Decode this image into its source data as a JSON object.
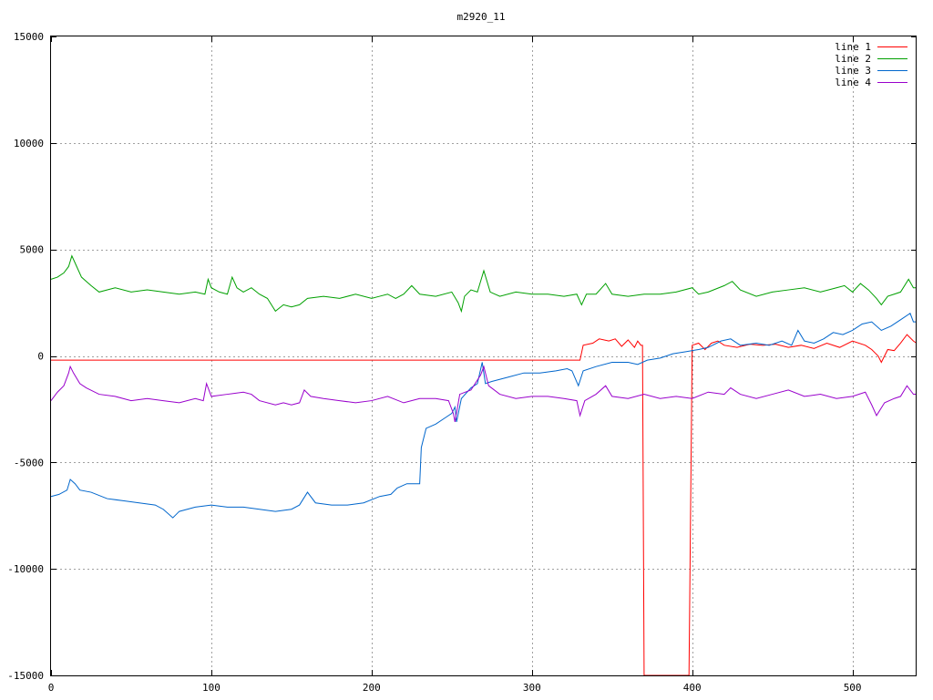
{
  "chart_data": {
    "type": "line",
    "title": "m2920_11",
    "xlabel": "",
    "ylabel": "",
    "xlim": [
      0,
      540
    ],
    "ylim": [
      -15000,
      15000
    ],
    "x_ticks": [
      0,
      100,
      200,
      300,
      400,
      500
    ],
    "y_ticks": [
      -15000,
      -10000,
      -5000,
      0,
      5000,
      10000,
      15000
    ],
    "grid": true,
    "legend_position": "top-right",
    "series": [
      {
        "name": "line 1",
        "color": "#ff0000",
        "points": [
          [
            0,
            -200
          ],
          [
            100,
            -200
          ],
          [
            200,
            -200
          ],
          [
            300,
            -200
          ],
          [
            330,
            -200
          ],
          [
            332,
            500
          ],
          [
            338,
            600
          ],
          [
            342,
            800
          ],
          [
            348,
            700
          ],
          [
            352,
            800
          ],
          [
            356,
            450
          ],
          [
            360,
            750
          ],
          [
            364,
            400
          ],
          [
            366,
            700
          ],
          [
            368,
            500
          ],
          [
            369,
            500
          ],
          [
            370,
            -15000
          ],
          [
            398,
            -15000
          ],
          [
            400,
            500
          ],
          [
            404,
            600
          ],
          [
            408,
            300
          ],
          [
            412,
            600
          ],
          [
            416,
            700
          ],
          [
            420,
            500
          ],
          [
            428,
            400
          ],
          [
            436,
            550
          ],
          [
            444,
            500
          ],
          [
            452,
            550
          ],
          [
            460,
            400
          ],
          [
            468,
            500
          ],
          [
            476,
            350
          ],
          [
            484,
            600
          ],
          [
            492,
            400
          ],
          [
            500,
            700
          ],
          [
            508,
            500
          ],
          [
            512,
            300
          ],
          [
            516,
            0
          ],
          [
            518,
            -300
          ],
          [
            522,
            300
          ],
          [
            526,
            250
          ],
          [
            530,
            600
          ],
          [
            534,
            1000
          ],
          [
            538,
            700
          ],
          [
            540,
            600
          ]
        ]
      },
      {
        "name": "line 2",
        "color": "#00a000",
        "points": [
          [
            0,
            3600
          ],
          [
            4,
            3700
          ],
          [
            8,
            3900
          ],
          [
            11,
            4200
          ],
          [
            13,
            4700
          ],
          [
            16,
            4200
          ],
          [
            19,
            3700
          ],
          [
            22,
            3500
          ],
          [
            25,
            3300
          ],
          [
            30,
            3000
          ],
          [
            40,
            3200
          ],
          [
            50,
            3000
          ],
          [
            60,
            3100
          ],
          [
            70,
            3000
          ],
          [
            80,
            2900
          ],
          [
            90,
            3000
          ],
          [
            96,
            2900
          ],
          [
            98,
            3600
          ],
          [
            100,
            3200
          ],
          [
            105,
            3000
          ],
          [
            110,
            2900
          ],
          [
            113,
            3700
          ],
          [
            116,
            3200
          ],
          [
            120,
            3000
          ],
          [
            125,
            3200
          ],
          [
            130,
            2900
          ],
          [
            135,
            2700
          ],
          [
            140,
            2100
          ],
          [
            145,
            2400
          ],
          [
            150,
            2300
          ],
          [
            155,
            2400
          ],
          [
            160,
            2700
          ],
          [
            170,
            2800
          ],
          [
            180,
            2700
          ],
          [
            190,
            2900
          ],
          [
            200,
            2700
          ],
          [
            205,
            2800
          ],
          [
            210,
            2900
          ],
          [
            215,
            2700
          ],
          [
            220,
            2900
          ],
          [
            225,
            3300
          ],
          [
            230,
            2900
          ],
          [
            240,
            2800
          ],
          [
            250,
            3000
          ],
          [
            254,
            2500
          ],
          [
            256,
            2100
          ],
          [
            258,
            2800
          ],
          [
            262,
            3100
          ],
          [
            266,
            3000
          ],
          [
            270,
            4000
          ],
          [
            274,
            3000
          ],
          [
            280,
            2800
          ],
          [
            290,
            3000
          ],
          [
            300,
            2900
          ],
          [
            310,
            2900
          ],
          [
            320,
            2800
          ],
          [
            328,
            2900
          ],
          [
            331,
            2400
          ],
          [
            334,
            2900
          ],
          [
            340,
            2900
          ],
          [
            346,
            3400
          ],
          [
            350,
            2900
          ],
          [
            360,
            2800
          ],
          [
            370,
            2900
          ],
          [
            380,
            2900
          ],
          [
            390,
            3000
          ],
          [
            400,
            3200
          ],
          [
            404,
            2900
          ],
          [
            410,
            3000
          ],
          [
            420,
            3300
          ],
          [
            425,
            3500
          ],
          [
            430,
            3100
          ],
          [
            440,
            2800
          ],
          [
            450,
            3000
          ],
          [
            460,
            3100
          ],
          [
            470,
            3200
          ],
          [
            480,
            3000
          ],
          [
            490,
            3200
          ],
          [
            495,
            3300
          ],
          [
            500,
            3000
          ],
          [
            505,
            3400
          ],
          [
            510,
            3100
          ],
          [
            515,
            2700
          ],
          [
            518,
            2400
          ],
          [
            522,
            2800
          ],
          [
            526,
            2900
          ],
          [
            530,
            3000
          ],
          [
            535,
            3600
          ],
          [
            538,
            3200
          ],
          [
            540,
            3200
          ]
        ]
      },
      {
        "name": "line 3",
        "color": "#0066cc",
        "points": [
          [
            0,
            -6600
          ],
          [
            5,
            -6500
          ],
          [
            10,
            -6300
          ],
          [
            12,
            -5800
          ],
          [
            15,
            -6000
          ],
          [
            18,
            -6300
          ],
          [
            25,
            -6400
          ],
          [
            35,
            -6700
          ],
          [
            45,
            -6800
          ],
          [
            55,
            -6900
          ],
          [
            65,
            -7000
          ],
          [
            70,
            -7200
          ],
          [
            76,
            -7600
          ],
          [
            80,
            -7300
          ],
          [
            90,
            -7100
          ],
          [
            100,
            -7000
          ],
          [
            110,
            -7100
          ],
          [
            120,
            -7100
          ],
          [
            130,
            -7200
          ],
          [
            140,
            -7300
          ],
          [
            150,
            -7200
          ],
          [
            155,
            -7000
          ],
          [
            160,
            -6400
          ],
          [
            165,
            -6900
          ],
          [
            175,
            -7000
          ],
          [
            185,
            -7000
          ],
          [
            195,
            -6900
          ],
          [
            205,
            -6600
          ],
          [
            212,
            -6500
          ],
          [
            216,
            -6200
          ],
          [
            222,
            -6000
          ],
          [
            230,
            -6000
          ],
          [
            231,
            -4300
          ],
          [
            234,
            -3400
          ],
          [
            240,
            -3200
          ],
          [
            246,
            -2900
          ],
          [
            250,
            -2700
          ],
          [
            252,
            -2400
          ],
          [
            253,
            -3100
          ],
          [
            256,
            -2000
          ],
          [
            262,
            -1500
          ],
          [
            266,
            -1300
          ],
          [
            269,
            -300
          ],
          [
            271,
            -1300
          ],
          [
            275,
            -1200
          ],
          [
            285,
            -1000
          ],
          [
            295,
            -800
          ],
          [
            305,
            -800
          ],
          [
            315,
            -700
          ],
          [
            322,
            -600
          ],
          [
            325,
            -700
          ],
          [
            329,
            -1400
          ],
          [
            332,
            -700
          ],
          [
            340,
            -500
          ],
          [
            350,
            -300
          ],
          [
            360,
            -300
          ],
          [
            366,
            -400
          ],
          [
            372,
            -200
          ],
          [
            380,
            -100
          ],
          [
            388,
            100
          ],
          [
            396,
            200
          ],
          [
            404,
            300
          ],
          [
            410,
            400
          ],
          [
            418,
            700
          ],
          [
            424,
            800
          ],
          [
            430,
            500
          ],
          [
            440,
            600
          ],
          [
            448,
            500
          ],
          [
            456,
            700
          ],
          [
            462,
            500
          ],
          [
            466,
            1200
          ],
          [
            470,
            700
          ],
          [
            476,
            600
          ],
          [
            482,
            800
          ],
          [
            488,
            1100
          ],
          [
            494,
            1000
          ],
          [
            500,
            1200
          ],
          [
            506,
            1500
          ],
          [
            512,
            1600
          ],
          [
            518,
            1200
          ],
          [
            524,
            1400
          ],
          [
            530,
            1700
          ],
          [
            536,
            2000
          ],
          [
            538,
            1600
          ],
          [
            540,
            1600
          ]
        ]
      },
      {
        "name": "line 4",
        "color": "#9900cc",
        "points": [
          [
            0,
            -2100
          ],
          [
            4,
            -1700
          ],
          [
            8,
            -1400
          ],
          [
            11,
            -800
          ],
          [
            12,
            -500
          ],
          [
            14,
            -800
          ],
          [
            18,
            -1300
          ],
          [
            22,
            -1500
          ],
          [
            30,
            -1800
          ],
          [
            40,
            -1900
          ],
          [
            50,
            -2100
          ],
          [
            60,
            -2000
          ],
          [
            70,
            -2100
          ],
          [
            80,
            -2200
          ],
          [
            90,
            -2000
          ],
          [
            95,
            -2100
          ],
          [
            97,
            -1300
          ],
          [
            100,
            -1900
          ],
          [
            110,
            -1800
          ],
          [
            120,
            -1700
          ],
          [
            125,
            -1800
          ],
          [
            130,
            -2100
          ],
          [
            140,
            -2300
          ],
          [
            145,
            -2200
          ],
          [
            150,
            -2300
          ],
          [
            155,
            -2200
          ],
          [
            158,
            -1600
          ],
          [
            162,
            -1900
          ],
          [
            170,
            -2000
          ],
          [
            180,
            -2100
          ],
          [
            190,
            -2200
          ],
          [
            200,
            -2100
          ],
          [
            210,
            -1900
          ],
          [
            220,
            -2200
          ],
          [
            230,
            -2000
          ],
          [
            240,
            -2000
          ],
          [
            248,
            -2100
          ],
          [
            251,
            -2700
          ],
          [
            252,
            -3100
          ],
          [
            255,
            -1800
          ],
          [
            262,
            -1600
          ],
          [
            268,
            -900
          ],
          [
            270,
            -500
          ],
          [
            273,
            -1400
          ],
          [
            280,
            -1800
          ],
          [
            290,
            -2000
          ],
          [
            300,
            -1900
          ],
          [
            310,
            -1900
          ],
          [
            320,
            -2000
          ],
          [
            328,
            -2100
          ],
          [
            330,
            -2800
          ],
          [
            333,
            -2100
          ],
          [
            340,
            -1800
          ],
          [
            346,
            -1400
          ],
          [
            350,
            -1900
          ],
          [
            360,
            -2000
          ],
          [
            370,
            -1800
          ],
          [
            380,
            -2000
          ],
          [
            390,
            -1900
          ],
          [
            400,
            -2000
          ],
          [
            410,
            -1700
          ],
          [
            420,
            -1800
          ],
          [
            424,
            -1500
          ],
          [
            430,
            -1800
          ],
          [
            440,
            -2000
          ],
          [
            450,
            -1800
          ],
          [
            460,
            -1600
          ],
          [
            470,
            -1900
          ],
          [
            480,
            -1800
          ],
          [
            490,
            -2000
          ],
          [
            500,
            -1900
          ],
          [
            508,
            -1700
          ],
          [
            512,
            -2300
          ],
          [
            515,
            -2800
          ],
          [
            520,
            -2200
          ],
          [
            526,
            -2000
          ],
          [
            530,
            -1900
          ],
          [
            534,
            -1400
          ],
          [
            538,
            -1800
          ],
          [
            540,
            -1800
          ]
        ]
      }
    ]
  }
}
